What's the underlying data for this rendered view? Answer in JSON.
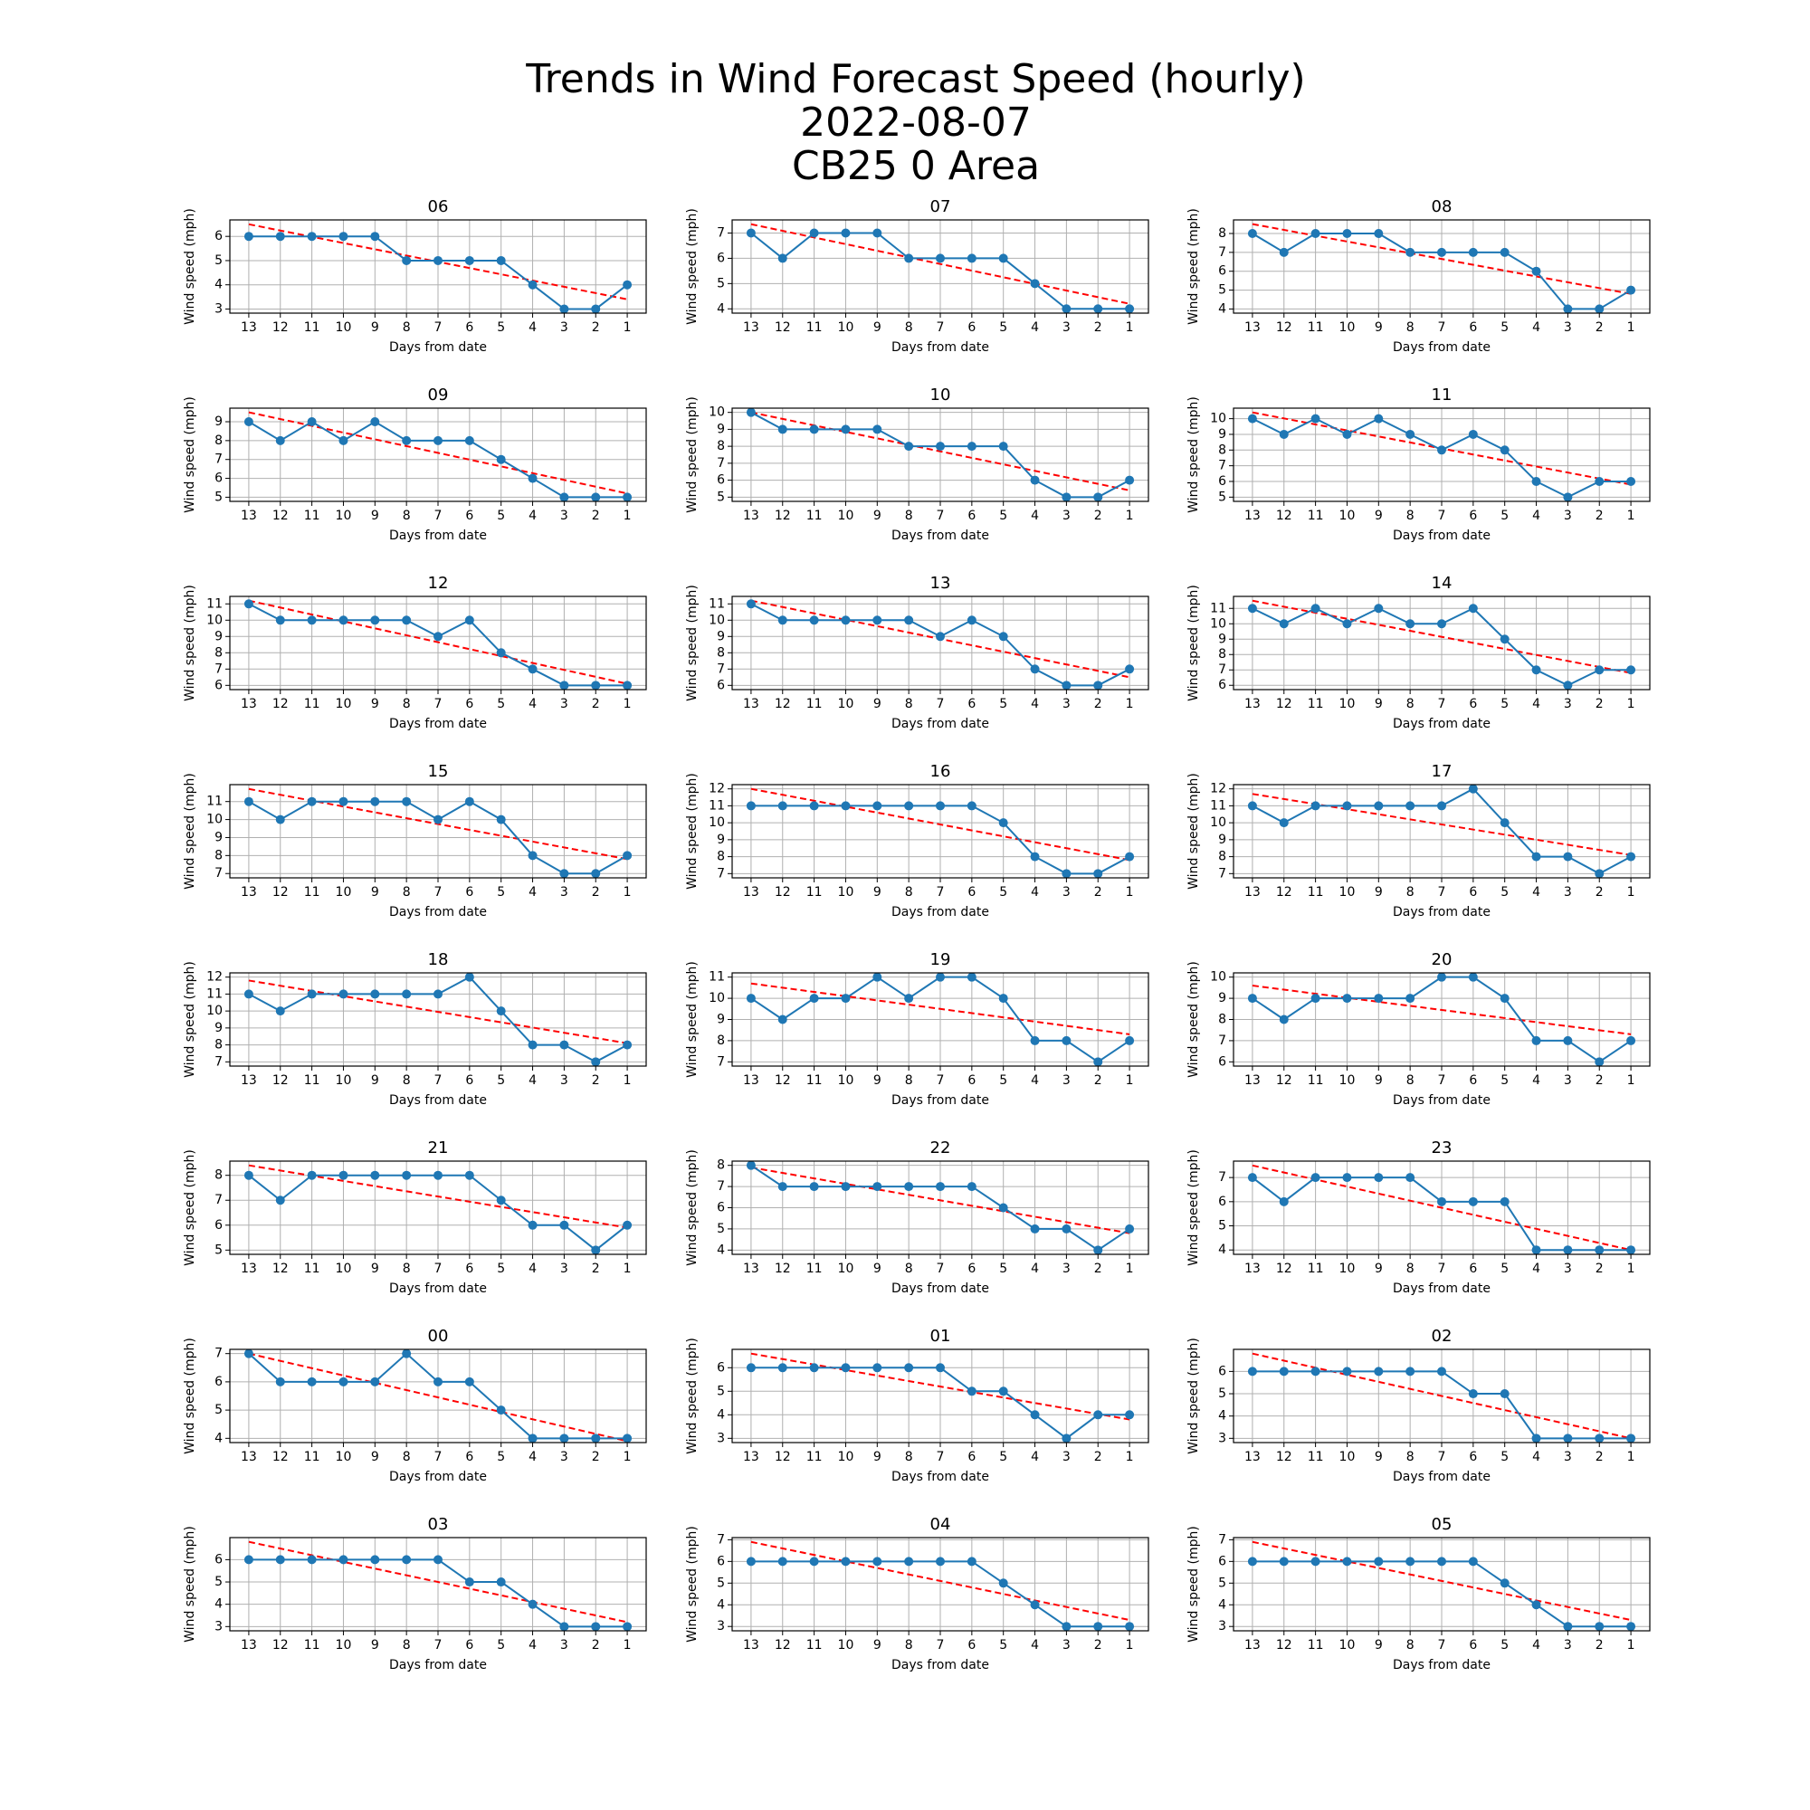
{
  "title": [
    "Trends in Wind Forecast Speed (hourly)",
    "2022-08-07",
    "CB25 0 Area"
  ],
  "chart_data": [
    {
      "type": "line",
      "title": "06",
      "xlabel": "Days from date",
      "ylabel": "Wind speed (mph)",
      "categories": [
        "13",
        "12",
        "11",
        "10",
        "9",
        "8",
        "7",
        "6",
        "5",
        "4",
        "3",
        "2",
        "1"
      ],
      "values": [
        6,
        6,
        6,
        6,
        6,
        5,
        5,
        5,
        5,
        4,
        3,
        3,
        4
      ],
      "color": "#1f77b4",
      "trend": {
        "start": 6.5,
        "end": 3.4,
        "color": "#ff0000"
      },
      "ylim": [
        2.83,
        6.68
      ],
      "yticks": [
        3,
        4,
        5,
        6
      ],
      "grid": true
    },
    {
      "type": "line",
      "title": "07",
      "xlabel": "Days from date",
      "ylabel": "Wind speed (mph)",
      "categories": [
        "13",
        "12",
        "11",
        "10",
        "9",
        "8",
        "7",
        "6",
        "5",
        "4",
        "3",
        "2",
        "1"
      ],
      "values": [
        7,
        6,
        7,
        7,
        7,
        6,
        6,
        6,
        6,
        5,
        4,
        4,
        4
      ],
      "color": "#1f77b4",
      "trend": {
        "start": 7.35,
        "end": 4.2,
        "color": "#ff0000"
      },
      "ylim": [
        3.83,
        7.52
      ],
      "yticks": [
        4,
        5,
        6,
        7
      ],
      "grid": true
    },
    {
      "type": "line",
      "title": "08",
      "xlabel": "Days from date",
      "ylabel": "Wind speed (mph)",
      "categories": [
        "13",
        "12",
        "11",
        "10",
        "9",
        "8",
        "7",
        "6",
        "5",
        "4",
        "3",
        "2",
        "1"
      ],
      "values": [
        8,
        7,
        8,
        8,
        8,
        7,
        7,
        7,
        7,
        6,
        4,
        4,
        5
      ],
      "color": "#1f77b4",
      "trend": {
        "start": 8.5,
        "end": 4.8,
        "color": "#ff0000"
      },
      "ylim": [
        3.78,
        8.72
      ],
      "yticks": [
        4,
        5,
        6,
        7,
        8
      ],
      "grid": true
    },
    {
      "type": "line",
      "title": "09",
      "xlabel": "Days from date",
      "ylabel": "Wind speed (mph)",
      "categories": [
        "13",
        "12",
        "11",
        "10",
        "9",
        "8",
        "7",
        "6",
        "5",
        "4",
        "3",
        "2",
        "1"
      ],
      "values": [
        9,
        8,
        9,
        8,
        9,
        8,
        8,
        8,
        7,
        6,
        5,
        5,
        5
      ],
      "color": "#1f77b4",
      "trend": {
        "start": 9.5,
        "end": 5.2,
        "color": "#ff0000"
      },
      "ylim": [
        4.78,
        9.72
      ],
      "yticks": [
        5,
        6,
        7,
        8,
        9
      ],
      "grid": true
    },
    {
      "type": "line",
      "title": "10",
      "xlabel": "Days from date",
      "ylabel": "Wind speed (mph)",
      "categories": [
        "13",
        "12",
        "11",
        "10",
        "9",
        "8",
        "7",
        "6",
        "5",
        "4",
        "3",
        "2",
        "1"
      ],
      "values": [
        10,
        9,
        9,
        9,
        9,
        8,
        8,
        8,
        8,
        6,
        5,
        5,
        6
      ],
      "color": "#1f77b4",
      "trend": {
        "start": 10,
        "end": 5.4,
        "color": "#ff0000"
      },
      "ylim": [
        4.75,
        10.25
      ],
      "yticks": [
        5,
        6,
        7,
        8,
        9,
        10
      ],
      "grid": true
    },
    {
      "type": "line",
      "title": "11",
      "xlabel": "Days from date",
      "ylabel": "Wind speed (mph)",
      "categories": [
        "13",
        "12",
        "11",
        "10",
        "9",
        "8",
        "7",
        "6",
        "5",
        "4",
        "3",
        "2",
        "1"
      ],
      "values": [
        10,
        9,
        10,
        9,
        10,
        9,
        8,
        9,
        8,
        6,
        5,
        6,
        6
      ],
      "color": "#1f77b4",
      "trend": {
        "start": 10.4,
        "end": 5.8,
        "color": "#ff0000"
      },
      "ylim": [
        4.73,
        10.67
      ],
      "yticks": [
        5,
        6,
        7,
        8,
        9,
        10
      ],
      "grid": true
    },
    {
      "type": "line",
      "title": "12",
      "xlabel": "Days from date",
      "ylabel": "Wind speed (mph)",
      "categories": [
        "13",
        "12",
        "11",
        "10",
        "9",
        "8",
        "7",
        "6",
        "5",
        "4",
        "3",
        "2",
        "1"
      ],
      "values": [
        11,
        10,
        10,
        10,
        10,
        10,
        9,
        10,
        8,
        7,
        6,
        6,
        6
      ],
      "color": "#1f77b4",
      "trend": {
        "start": 11.2,
        "end": 6.1,
        "color": "#ff0000"
      },
      "ylim": [
        5.74,
        11.46
      ],
      "yticks": [
        6,
        7,
        8,
        9,
        10,
        11
      ],
      "grid": true
    },
    {
      "type": "line",
      "title": "13",
      "xlabel": "Days from date",
      "ylabel": "Wind speed (mph)",
      "categories": [
        "13",
        "12",
        "11",
        "10",
        "9",
        "8",
        "7",
        "6",
        "5",
        "4",
        "3",
        "2",
        "1"
      ],
      "values": [
        11,
        10,
        10,
        10,
        10,
        10,
        9,
        10,
        9,
        7,
        6,
        6,
        7
      ],
      "color": "#1f77b4",
      "trend": {
        "start": 11.2,
        "end": 6.5,
        "color": "#ff0000"
      },
      "ylim": [
        5.74,
        11.46
      ],
      "yticks": [
        6,
        7,
        8,
        9,
        10,
        11
      ],
      "grid": true
    },
    {
      "type": "line",
      "title": "14",
      "xlabel": "Days from date",
      "ylabel": "Wind speed (mph)",
      "categories": [
        "13",
        "12",
        "11",
        "10",
        "9",
        "8",
        "7",
        "6",
        "5",
        "4",
        "3",
        "2",
        "1"
      ],
      "values": [
        11,
        10,
        11,
        10,
        11,
        10,
        10,
        11,
        9,
        7,
        6,
        7,
        7
      ],
      "color": "#1f77b4",
      "trend": {
        "start": 11.5,
        "end": 6.8,
        "color": "#ff0000"
      },
      "ylim": [
        5.72,
        11.78
      ],
      "yticks": [
        6,
        7,
        8,
        9,
        10,
        11
      ],
      "grid": true
    },
    {
      "type": "line",
      "title": "15",
      "xlabel": "Days from date",
      "ylabel": "Wind speed (mph)",
      "categories": [
        "13",
        "12",
        "11",
        "10",
        "9",
        "8",
        "7",
        "6",
        "5",
        "4",
        "3",
        "2",
        "1"
      ],
      "values": [
        11,
        10,
        11,
        11,
        11,
        11,
        10,
        11,
        10,
        8,
        7,
        7,
        8
      ],
      "color": "#1f77b4",
      "trend": {
        "start": 11.7,
        "end": 7.8,
        "color": "#ff0000"
      },
      "ylim": [
        6.76,
        11.94
      ],
      "yticks": [
        7,
        8,
        9,
        10,
        11
      ],
      "grid": true
    },
    {
      "type": "line",
      "title": "16",
      "xlabel": "Days from date",
      "ylabel": "Wind speed (mph)",
      "categories": [
        "13",
        "12",
        "11",
        "10",
        "9",
        "8",
        "7",
        "6",
        "5",
        "4",
        "3",
        "2",
        "1"
      ],
      "values": [
        11,
        11,
        11,
        11,
        11,
        11,
        11,
        11,
        10,
        8,
        7,
        7,
        8
      ],
      "color": "#1f77b4",
      "trend": {
        "start": 12,
        "end": 7.8,
        "color": "#ff0000"
      },
      "ylim": [
        6.75,
        12.25
      ],
      "yticks": [
        7,
        8,
        9,
        10,
        11,
        12
      ],
      "grid": true
    },
    {
      "type": "line",
      "title": "17",
      "xlabel": "Days from date",
      "ylabel": "Wind speed (mph)",
      "categories": [
        "13",
        "12",
        "11",
        "10",
        "9",
        "8",
        "7",
        "6",
        "5",
        "4",
        "3",
        "2",
        "1"
      ],
      "values": [
        11,
        10,
        11,
        11,
        11,
        11,
        11,
        12,
        10,
        8,
        8,
        7,
        8
      ],
      "color": "#1f77b4",
      "trend": {
        "start": 11.7,
        "end": 8.1,
        "color": "#ff0000"
      },
      "ylim": [
        6.75,
        12.25
      ],
      "yticks": [
        7,
        8,
        9,
        10,
        11,
        12
      ],
      "grid": true
    },
    {
      "type": "line",
      "title": "18",
      "xlabel": "Days from date",
      "ylabel": "Wind speed (mph)",
      "categories": [
        "13",
        "12",
        "11",
        "10",
        "9",
        "8",
        "7",
        "6",
        "5",
        "4",
        "3",
        "2",
        "1"
      ],
      "values": [
        11,
        10,
        11,
        11,
        11,
        11,
        11,
        12,
        10,
        8,
        8,
        7,
        8
      ],
      "color": "#1f77b4",
      "trend": {
        "start": 11.8,
        "end": 8.1,
        "color": "#ff0000"
      },
      "ylim": [
        6.75,
        12.25
      ],
      "yticks": [
        7,
        8,
        9,
        10,
        11,
        12
      ],
      "grid": true
    },
    {
      "type": "line",
      "title": "19",
      "xlabel": "Days from date",
      "ylabel": "Wind speed (mph)",
      "categories": [
        "13",
        "12",
        "11",
        "10",
        "9",
        "8",
        "7",
        "6",
        "5",
        "4",
        "3",
        "2",
        "1"
      ],
      "values": [
        10,
        9,
        10,
        10,
        11,
        10,
        11,
        11,
        10,
        8,
        8,
        7,
        8
      ],
      "color": "#1f77b4",
      "trend": {
        "start": 10.7,
        "end": 8.3,
        "color": "#ff0000"
      },
      "ylim": [
        6.8,
        11.2
      ],
      "yticks": [
        7,
        8,
        9,
        10,
        11
      ],
      "grid": true
    },
    {
      "type": "line",
      "title": "20",
      "xlabel": "Days from date",
      "ylabel": "Wind speed (mph)",
      "categories": [
        "13",
        "12",
        "11",
        "10",
        "9",
        "8",
        "7",
        "6",
        "5",
        "4",
        "3",
        "2",
        "1"
      ],
      "values": [
        9,
        8,
        9,
        9,
        9,
        9,
        10,
        10,
        9,
        7,
        7,
        6,
        7
      ],
      "color": "#1f77b4",
      "trend": {
        "start": 9.6,
        "end": 7.3,
        "color": "#ff0000"
      },
      "ylim": [
        5.8,
        10.2
      ],
      "yticks": [
        6,
        7,
        8,
        9,
        10
      ],
      "grid": true
    },
    {
      "type": "line",
      "title": "21",
      "xlabel": "Days from date",
      "ylabel": "Wind speed (mph)",
      "categories": [
        "13",
        "12",
        "11",
        "10",
        "9",
        "8",
        "7",
        "6",
        "5",
        "4",
        "3",
        "2",
        "1"
      ],
      "values": [
        8,
        7,
        8,
        8,
        8,
        8,
        8,
        8,
        7,
        6,
        6,
        5,
        6
      ],
      "color": "#1f77b4",
      "trend": {
        "start": 8.4,
        "end": 5.9,
        "color": "#ff0000"
      },
      "ylim": [
        4.83,
        8.57
      ],
      "yticks": [
        5,
        6,
        7,
        8
      ],
      "grid": true
    },
    {
      "type": "line",
      "title": "22",
      "xlabel": "Days from date",
      "ylabel": "Wind speed (mph)",
      "categories": [
        "13",
        "12",
        "11",
        "10",
        "9",
        "8",
        "7",
        "6",
        "5",
        "4",
        "3",
        "2",
        "1"
      ],
      "values": [
        8,
        7,
        7,
        7,
        7,
        7,
        7,
        7,
        6,
        5,
        5,
        4,
        5
      ],
      "color": "#1f77b4",
      "trend": {
        "start": 7.9,
        "end": 4.8,
        "color": "#ff0000"
      },
      "ylim": [
        3.8,
        8.2
      ],
      "yticks": [
        4,
        5,
        6,
        7,
        8
      ],
      "grid": true
    },
    {
      "type": "line",
      "title": "23",
      "xlabel": "Days from date",
      "ylabel": "Wind speed (mph)",
      "categories": [
        "13",
        "12",
        "11",
        "10",
        "9",
        "8",
        "7",
        "6",
        "5",
        "4",
        "3",
        "2",
        "1"
      ],
      "values": [
        7,
        6,
        7,
        7,
        7,
        7,
        6,
        6,
        6,
        4,
        4,
        4,
        4
      ],
      "color": "#1f77b4",
      "trend": {
        "start": 7.5,
        "end": 4.0,
        "color": "#ff0000"
      },
      "ylim": [
        3.82,
        7.68
      ],
      "yticks": [
        4,
        5,
        6,
        7
      ],
      "grid": true
    },
    {
      "type": "line",
      "title": "00",
      "xlabel": "Days from date",
      "ylabel": "Wind speed (mph)",
      "categories": [
        "13",
        "12",
        "11",
        "10",
        "9",
        "8",
        "7",
        "6",
        "5",
        "4",
        "3",
        "2",
        "1"
      ],
      "values": [
        7,
        6,
        6,
        6,
        6,
        7,
        6,
        6,
        5,
        4,
        4,
        4,
        4
      ],
      "color": "#1f77b4",
      "trend": {
        "start": 7.0,
        "end": 3.9,
        "color": "#ff0000"
      },
      "ylim": [
        3.85,
        7.15
      ],
      "yticks": [
        4,
        5,
        6,
        7
      ],
      "grid": true
    },
    {
      "type": "line",
      "title": "01",
      "xlabel": "Days from date",
      "ylabel": "Wind speed (mph)",
      "categories": [
        "13",
        "12",
        "11",
        "10",
        "9",
        "8",
        "7",
        "6",
        "5",
        "4",
        "3",
        "2",
        "1"
      ],
      "values": [
        6,
        6,
        6,
        6,
        6,
        6,
        6,
        5,
        5,
        4,
        3,
        4,
        4
      ],
      "color": "#1f77b4",
      "trend": {
        "start": 6.6,
        "end": 3.8,
        "color": "#ff0000"
      },
      "ylim": [
        2.82,
        6.78
      ],
      "yticks": [
        3,
        4,
        5,
        6
      ],
      "grid": true
    },
    {
      "type": "line",
      "title": "02",
      "xlabel": "Days from date",
      "ylabel": "Wind speed (mph)",
      "categories": [
        "13",
        "12",
        "11",
        "10",
        "9",
        "8",
        "7",
        "6",
        "5",
        "4",
        "3",
        "2",
        "1"
      ],
      "values": [
        6,
        6,
        6,
        6,
        6,
        6,
        6,
        5,
        5,
        3,
        3,
        3,
        3
      ],
      "color": "#1f77b4",
      "trend": {
        "start": 6.8,
        "end": 3.0,
        "color": "#ff0000"
      },
      "ylim": [
        2.81,
        6.99
      ],
      "yticks": [
        3,
        4,
        5,
        6
      ],
      "grid": true
    },
    {
      "type": "line",
      "title": "03",
      "xlabel": "Days from date",
      "ylabel": "Wind speed (mph)",
      "categories": [
        "13",
        "12",
        "11",
        "10",
        "9",
        "8",
        "7",
        "6",
        "5",
        "4",
        "3",
        "2",
        "1"
      ],
      "values": [
        6,
        6,
        6,
        6,
        6,
        6,
        6,
        5,
        5,
        4,
        3,
        3,
        3
      ],
      "color": "#1f77b4",
      "trend": {
        "start": 6.8,
        "end": 3.2,
        "color": "#ff0000"
      },
      "ylim": [
        2.81,
        6.99
      ],
      "yticks": [
        3,
        4,
        5,
        6
      ],
      "grid": true
    },
    {
      "type": "line",
      "title": "04",
      "xlabel": "Days from date",
      "ylabel": "Wind speed (mph)",
      "categories": [
        "13",
        "12",
        "11",
        "10",
        "9",
        "8",
        "7",
        "6",
        "5",
        "4",
        "3",
        "2",
        "1"
      ],
      "values": [
        6,
        6,
        6,
        6,
        6,
        6,
        6,
        6,
        5,
        4,
        3,
        3,
        3
      ],
      "color": "#1f77b4",
      "trend": {
        "start": 6.9,
        "end": 3.3,
        "color": "#ff0000"
      },
      "ylim": [
        2.8,
        7.1
      ],
      "yticks": [
        3,
        4,
        5,
        6,
        7
      ],
      "grid": true
    },
    {
      "type": "line",
      "title": "05",
      "xlabel": "Days from date",
      "ylabel": "Wind speed (mph)",
      "categories": [
        "13",
        "12",
        "11",
        "10",
        "9",
        "8",
        "7",
        "6",
        "5",
        "4",
        "3",
        "2",
        "1"
      ],
      "values": [
        6,
        6,
        6,
        6,
        6,
        6,
        6,
        6,
        5,
        4,
        3,
        3,
        3
      ],
      "color": "#1f77b4",
      "trend": {
        "start": 6.9,
        "end": 3.3,
        "color": "#ff0000"
      },
      "ylim": [
        2.8,
        7.1
      ],
      "yticks": [
        3,
        4,
        5,
        6,
        7
      ],
      "grid": true
    }
  ]
}
